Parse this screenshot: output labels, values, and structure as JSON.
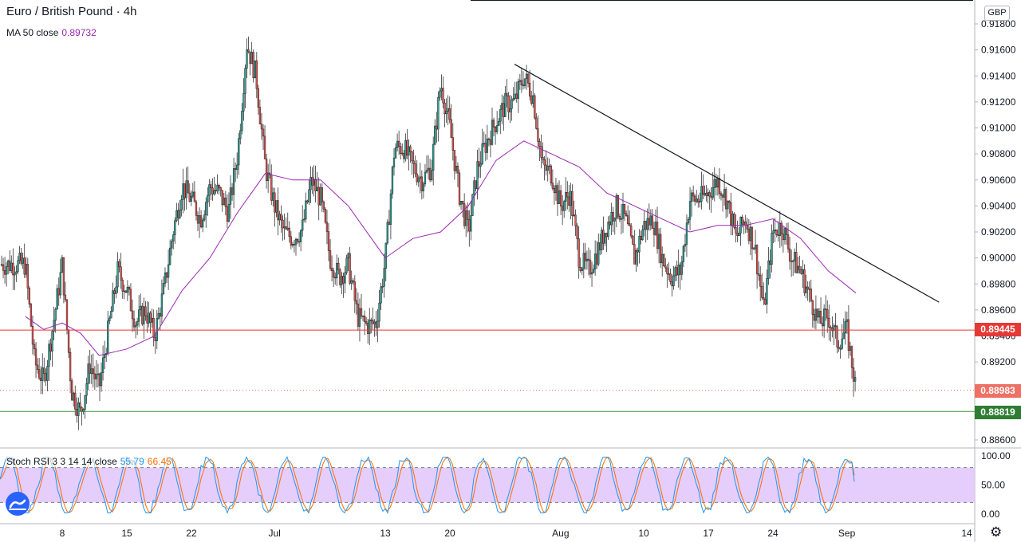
{
  "header": {
    "title": "Euro / British Pound · 4h",
    "ma_label": "MA 50 close",
    "ma_value": "0.89732",
    "currency_badge": "GBP"
  },
  "stoch_legend": {
    "label": "Stoch RSI 3 3 14 14 close",
    "k_value": "55.79",
    "d_value": "66.45"
  },
  "price_tags": {
    "resistance": "0.89445",
    "last": "0.88983",
    "support": "0.88819"
  },
  "colors": {
    "up": "#26a69a",
    "down": "#ef5350",
    "ma": "#9c27b0",
    "k": "#2196f3",
    "d": "#ff6d00",
    "resistance": "#e53935",
    "support": "#388e3c",
    "stoch_band": "#e1c6fb"
  },
  "icons": {
    "logo": "tradingview-logo-icon",
    "settings": "gear-icon"
  },
  "chart_data": [
    {
      "type": "candlestick",
      "title": "Euro / British Pound · 4h",
      "y_ticks": [
        "0.91800",
        "0.91600",
        "0.91400",
        "0.91200",
        "0.91000",
        "0.90800",
        "0.90600",
        "0.90400",
        "0.90200",
        "0.90000",
        "0.89800",
        "0.89600",
        "0.89400",
        "0.89200",
        "0.89000",
        "0.88800",
        "0.88600"
      ],
      "x_ticks": [
        "8",
        "15",
        "22",
        "Jul",
        "13",
        "20",
        "Aug",
        "10",
        "17",
        "24",
        "Sep",
        "14"
      ],
      "ylim": [
        0.8852,
        0.9193
      ],
      "close_path": [
        [
          "Jun 4",
          0.8995
        ],
        [
          "Jun 5",
          0.892
        ],
        [
          "Jun 6",
          0.8905
        ],
        [
          "Jun 7",
          0.8948
        ],
        [
          "Jun 8",
          0.8995
        ],
        [
          "Jun 9",
          0.8898
        ],
        [
          "Jun 10",
          0.888
        ],
        [
          "Jun 11",
          0.8918
        ],
        [
          "Jun 12",
          0.89
        ],
        [
          "Jun 13",
          0.8945
        ],
        [
          "Jun 14",
          0.899
        ],
        [
          "Jun 15",
          0.8975
        ],
        [
          "Jun 16",
          0.895
        ],
        [
          "Jun 17",
          0.896
        ],
        [
          "Jun 18",
          0.894
        ],
        [
          "Jun 19",
          0.8975
        ],
        [
          "Jun 20",
          0.902
        ],
        [
          "Jun 21",
          0.9055
        ],
        [
          "Jun 22",
          0.9045
        ],
        [
          "Jun 23",
          0.903
        ],
        [
          "Jun 24",
          0.9055
        ],
        [
          "Jun 25",
          0.905
        ],
        [
          "Jun 26",
          0.9035
        ],
        [
          "Jun 27",
          0.908
        ],
        [
          "Jun 28",
          0.9165
        ],
        [
          "Jun 29",
          0.914
        ],
        [
          "Jun 30",
          0.907
        ],
        [
          "Jul 1",
          0.904
        ],
        [
          "Jul 2",
          0.902
        ],
        [
          "Jul 3",
          0.9015
        ],
        [
          "Jul 4",
          0.9022
        ],
        [
          "Jul 5",
          0.906
        ],
        [
          "Jul 6",
          0.9045
        ],
        [
          "Jul 7",
          0.9
        ],
        [
          "Jul 8",
          0.8985
        ],
        [
          "Jul 9",
          0.8995
        ],
        [
          "Jul 10",
          0.8955
        ],
        [
          "Jul 11",
          0.8948
        ],
        [
          "Jul 12",
          0.895
        ],
        [
          "Jul 13",
          0.8998
        ],
        [
          "Jul 14",
          0.9085
        ],
        [
          "Jul 15",
          0.9085
        ],
        [
          "Jul 16",
          0.907
        ],
        [
          "Jul 17",
          0.906
        ],
        [
          "Jul 18",
          0.907
        ],
        [
          "Jul 19",
          0.9135
        ],
        [
          "Jul 20",
          0.91
        ],
        [
          "Jul 21",
          0.905
        ],
        [
          "Jul 22",
          0.902
        ],
        [
          "Jul 23",
          0.907
        ],
        [
          "Jul 24",
          0.909
        ],
        [
          "Jul 25",
          0.9105
        ],
        [
          "Jul 26",
          0.9118
        ],
        [
          "Jul 27",
          0.912
        ],
        [
          "Jul 28",
          0.914
        ],
        [
          "Jul 29",
          0.9125
        ],
        [
          "Jul 30",
          0.907
        ],
        [
          "Jul 31",
          0.9065
        ],
        [
          "Aug 1",
          0.904
        ],
        [
          "Aug 2",
          0.905
        ],
        [
          "Aug 3",
          0.9
        ],
        [
          "Aug 4",
          0.899
        ],
        [
          "Aug 5",
          0.9005
        ],
        [
          "Aug 6",
          0.9025
        ],
        [
          "Aug 7",
          0.904
        ],
        [
          "Aug 8",
          0.903
        ],
        [
          "Aug 9",
          0.9
        ],
        [
          "Aug 10",
          0.9025
        ],
        [
          "Aug 11",
          0.903
        ],
        [
          "Aug 12",
          0.9
        ],
        [
          "Aug 13",
          0.8985
        ],
        [
          "Aug 14",
          0.899
        ],
        [
          "Aug 15",
          0.9045
        ],
        [
          "Aug 16",
          0.9045
        ],
        [
          "Aug 17",
          0.905
        ],
        [
          "Aug 18",
          0.906
        ],
        [
          "Aug 19",
          0.9045
        ],
        [
          "Aug 20",
          0.9015
        ],
        [
          "Aug 21",
          0.903
        ],
        [
          "Aug 22",
          0.901
        ],
        [
          "Aug 23",
          0.896
        ],
        [
          "Aug 24",
          0.902
        ],
        [
          "Aug 25",
          0.9025
        ],
        [
          "Aug 26",
          0.9
        ],
        [
          "Aug 27",
          0.899
        ],
        [
          "Aug 28",
          0.897
        ],
        [
          "Aug 29",
          0.895
        ],
        [
          "Aug 30",
          0.8955
        ],
        [
          "Aug 31",
          0.8935
        ],
        [
          "Sep 1",
          0.8945
        ],
        [
          "Sep 2",
          0.8898
        ]
      ],
      "ma50_path": [
        [
          "Jun 4",
          0.8955
        ],
        [
          "Jun 6",
          0.8945
        ],
        [
          "Jun 8",
          0.895
        ],
        [
          "Jun 10",
          0.8942
        ],
        [
          "Jun 12",
          0.8925
        ],
        [
          "Jun 15",
          0.893
        ],
        [
          "Jun 18",
          0.894
        ],
        [
          "Jun 21",
          0.8975
        ],
        [
          "Jun 24",
          0.9
        ],
        [
          "Jun 27",
          0.9035
        ],
        [
          "Jun 30",
          0.9065
        ],
        [
          "Jul 3",
          0.906
        ],
        [
          "Jul 6",
          0.906
        ],
        [
          "Jul 9",
          0.904
        ],
        [
          "Jul 13",
          0.9
        ],
        [
          "Jul 16",
          0.9015
        ],
        [
          "Jul 19",
          0.902
        ],
        [
          "Jul 22",
          0.904
        ],
        [
          "Jul 25",
          0.9075
        ],
        [
          "Jul 28",
          0.909
        ],
        [
          "Jul 31",
          0.908
        ],
        [
          "Aug 3",
          0.907
        ],
        [
          "Aug 6",
          0.905
        ],
        [
          "Aug 9",
          0.904
        ],
        [
          "Aug 12",
          0.903
        ],
        [
          "Aug 15",
          0.902
        ],
        [
          "Aug 18",
          0.9025
        ],
        [
          "Aug 21",
          0.9025
        ],
        [
          "Aug 24",
          0.903
        ],
        [
          "Aug 27",
          0.9015
        ],
        [
          "Aug 30",
          0.899
        ],
        [
          "Sep 2",
          0.8973
        ]
      ],
      "trendline": {
        "start": [
          "Jul 27",
          0.9149
        ],
        "end": [
          "Sep 11",
          0.8966
        ]
      },
      "horizontal_levels": [
        {
          "name": "resistance",
          "value": 0.89445
        },
        {
          "name": "last",
          "value": 0.88983,
          "style": "dotted"
        },
        {
          "name": "support",
          "value": 0.88819
        }
      ]
    },
    {
      "type": "line",
      "title": "Stoch RSI 3 3 14 14 close",
      "y_ticks": [
        "100.00",
        "50.00",
        "0.00"
      ],
      "ylim": [
        -5,
        105
      ],
      "band": [
        20,
        80
      ],
      "series": [
        {
          "name": "K",
          "last": 55.79
        },
        {
          "name": "D",
          "last": 66.45
        }
      ]
    }
  ]
}
